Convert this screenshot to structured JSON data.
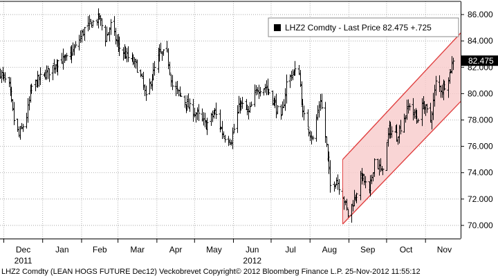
{
  "chart_data": {
    "type": "ohlc",
    "legend": {
      "symbol": "LHZ2 Comdty",
      "label": "Last Price",
      "value": "82.475",
      "change": "+.725",
      "position": "top-right"
    },
    "y_axis": {
      "side": "right",
      "min": 69.0,
      "max": 87.0,
      "ticks": [
        "70.000",
        "72.000",
        "74.000",
        "76.000",
        "78.000",
        "80.000",
        "82.000",
        "84.000",
        "86.000"
      ]
    },
    "x_axis": {
      "months": [
        "Dec",
        "Jan",
        "Feb",
        "Mar",
        "Apr",
        "May",
        "Jun",
        "Jul",
        "Aug",
        "Sep",
        "Oct",
        "Nov"
      ],
      "years": [
        {
          "label": "2011",
          "month": "Dec"
        },
        {
          "label": "2012",
          "month": "Jun"
        }
      ]
    },
    "last_price_label": "82.475",
    "grid": "dotted",
    "trend_channel": {
      "color": "#e04040",
      "fill": "#f8caca",
      "upper": [
        {
          "date": "2012-08-27",
          "value": 75.0
        },
        {
          "date": "2012-11-29",
          "value": 84.6
        }
      ],
      "lower": [
        {
          "date": "2012-08-27",
          "value": 70.1
        },
        {
          "date": "2012-11-29",
          "value": 79.4
        }
      ]
    },
    "anchors": [
      {
        "date": "2011-11-28",
        "close": 81.6
      },
      {
        "date": "2011-12-05",
        "close": 80.5
      },
      {
        "date": "2011-12-09",
        "close": 78.0
      },
      {
        "date": "2011-12-13",
        "close": 76.8
      },
      {
        "date": "2011-12-19",
        "close": 78.3
      },
      {
        "date": "2011-12-23",
        "close": 80.5
      },
      {
        "date": "2011-12-30",
        "close": 81.2
      },
      {
        "date": "2012-01-06",
        "close": 81.7
      },
      {
        "date": "2012-01-13",
        "close": 82.5
      },
      {
        "date": "2012-01-20",
        "close": 82.6
      },
      {
        "date": "2012-01-27",
        "close": 83.5
      },
      {
        "date": "2012-02-03",
        "close": 84.9
      },
      {
        "date": "2012-02-10",
        "close": 85.4
      },
      {
        "date": "2012-02-15",
        "close": 85.8
      },
      {
        "date": "2012-02-20",
        "close": 84.2
      },
      {
        "date": "2012-02-24",
        "close": 85.2
      },
      {
        "date": "2012-03-01",
        "close": 83.6
      },
      {
        "date": "2012-03-08",
        "close": 82.8
      },
      {
        "date": "2012-03-15",
        "close": 82.2
      },
      {
        "date": "2012-03-20",
        "close": 81.0
      },
      {
        "date": "2012-03-23",
        "close": 79.6
      },
      {
        "date": "2012-03-27",
        "close": 81.0
      },
      {
        "date": "2012-04-03",
        "close": 83.0
      },
      {
        "date": "2012-04-09",
        "close": 83.0
      },
      {
        "date": "2012-04-13",
        "close": 80.6
      },
      {
        "date": "2012-04-20",
        "close": 79.8
      },
      {
        "date": "2012-04-27",
        "close": 78.9
      },
      {
        "date": "2012-05-03",
        "close": 78.4
      },
      {
        "date": "2012-05-10",
        "close": 77.6
      },
      {
        "date": "2012-05-17",
        "close": 78.6
      },
      {
        "date": "2012-05-24",
        "close": 76.8
      },
      {
        "date": "2012-05-30",
        "close": 76.5
      },
      {
        "date": "2012-06-06",
        "close": 79.3
      },
      {
        "date": "2012-06-13",
        "close": 78.5
      },
      {
        "date": "2012-06-20",
        "close": 80.4
      },
      {
        "date": "2012-06-27",
        "close": 80.5
      },
      {
        "date": "2012-07-03",
        "close": 79.4
      },
      {
        "date": "2012-07-09",
        "close": 78.0
      },
      {
        "date": "2012-07-13",
        "close": 80.8
      },
      {
        "date": "2012-07-18",
        "close": 81.6
      },
      {
        "date": "2012-07-23",
        "close": 81.7
      },
      {
        "date": "2012-07-26",
        "close": 78.4
      },
      {
        "date": "2012-07-30",
        "close": 77.6
      },
      {
        "date": "2012-08-03",
        "close": 76.5
      },
      {
        "date": "2012-08-09",
        "close": 79.6
      },
      {
        "date": "2012-08-14",
        "close": 76.0
      },
      {
        "date": "2012-08-17",
        "close": 73.0
      },
      {
        "date": "2012-08-22",
        "close": 73.5
      },
      {
        "date": "2012-08-27",
        "close": 72.3
      },
      {
        "date": "2012-08-31",
        "close": 70.8
      },
      {
        "date": "2012-09-05",
        "close": 72.0
      },
      {
        "date": "2012-09-11",
        "close": 73.8
      },
      {
        "date": "2012-09-17",
        "close": 72.4
      },
      {
        "date": "2012-09-21",
        "close": 75.0
      },
      {
        "date": "2012-09-27",
        "close": 74.0
      },
      {
        "date": "2012-10-03",
        "close": 77.3
      },
      {
        "date": "2012-10-09",
        "close": 76.8
      },
      {
        "date": "2012-10-15",
        "close": 78.2
      },
      {
        "date": "2012-10-19",
        "close": 79.2
      },
      {
        "date": "2012-10-25",
        "close": 78.0
      },
      {
        "date": "2012-10-30",
        "close": 79.2
      },
      {
        "date": "2012-11-05",
        "close": 78.0
      },
      {
        "date": "2012-11-09",
        "close": 80.8
      },
      {
        "date": "2012-11-14",
        "close": 80.3
      },
      {
        "date": "2012-11-19",
        "close": 81.3
      },
      {
        "date": "2012-11-23",
        "close": 82.475
      }
    ]
  },
  "footer": "LHZ2 Comdty (LEAN HOGS FUTURE  Dec12) Veckobrevet Copyright© 2012 Bloomberg Finance L.P.  25-Nov-2012 11:55:12"
}
